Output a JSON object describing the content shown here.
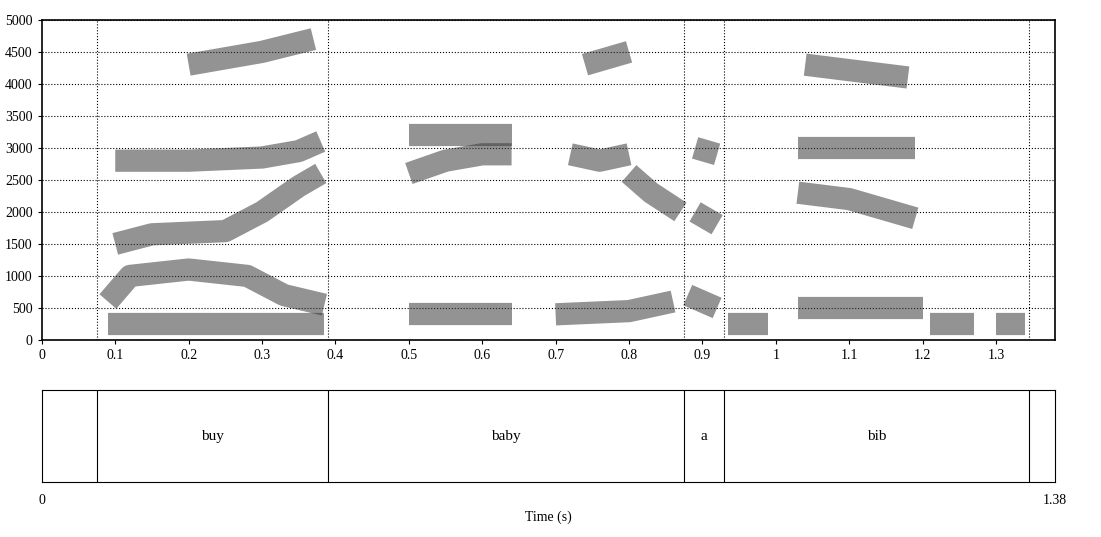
{
  "chart_data": {
    "type": "spectrogram",
    "xlim": [
      0,
      1.38
    ],
    "xticks": [
      0,
      0.1,
      0.2,
      0.3,
      0.4,
      0.5,
      0.6,
      0.7,
      0.8,
      0.9,
      1,
      1.1,
      1.2,
      1.3
    ],
    "ylim": [
      0,
      5000
    ],
    "yticks": [
      0,
      500,
      1000,
      1500,
      2000,
      2500,
      3000,
      3500,
      4000,
      4500,
      5000
    ],
    "grid": true,
    "color": "#3a3a3a",
    "series": [
      {
        "x": [
          0.09,
          0.385
        ],
        "values": [
          250,
          250
        ]
      },
      {
        "x": [
          0.09,
          0.12,
          0.2,
          0.28,
          0.33,
          0.385
        ],
        "values": [
          600,
          1000,
          1100,
          1000,
          700,
          550
        ]
      },
      {
        "x": [
          0.1,
          0.15,
          0.25,
          0.3,
          0.35,
          0.38
        ],
        "values": [
          1500,
          1650,
          1700,
          2000,
          2400,
          2600
        ]
      },
      {
        "x": [
          0.1,
          0.2,
          0.3,
          0.35,
          0.38
        ],
        "values": [
          2800,
          2800,
          2850,
          2950,
          3100
        ]
      },
      {
        "x": [
          0.2,
          0.3,
          0.37
        ],
        "values": [
          4300,
          4500,
          4700
        ]
      },
      {
        "x": [
          0.5,
          0.64
        ],
        "values": [
          400,
          400
        ]
      },
      {
        "x": [
          0.5,
          0.55,
          0.6,
          0.64
        ],
        "values": [
          2600,
          2800,
          2900,
          2900
        ]
      },
      {
        "x": [
          0.5,
          0.64
        ],
        "values": [
          3200,
          3200
        ]
      },
      {
        "x": [
          0.7,
          0.8,
          0.86
        ],
        "values": [
          400,
          450,
          600
        ]
      },
      {
        "x": [
          0.72,
          0.76,
          0.8
        ],
        "values": [
          2900,
          2800,
          2900
        ]
      },
      {
        "x": [
          0.8,
          0.83,
          0.87
        ],
        "values": [
          2600,
          2300,
          2000
        ]
      },
      {
        "x": [
          0.74,
          0.8
        ],
        "values": [
          4300,
          4500
        ]
      },
      {
        "x": [
          0.88,
          0.92
        ],
        "values": [
          700,
          500
        ]
      },
      {
        "x": [
          0.89,
          0.92
        ],
        "values": [
          2000,
          1800
        ]
      },
      {
        "x": [
          0.89,
          0.92
        ],
        "values": [
          3000,
          2900
        ]
      },
      {
        "x": [
          0.935,
          0.99
        ],
        "values": [
          250,
          250
        ]
      },
      {
        "x": [
          1.03,
          1.2
        ],
        "values": [
          500,
          500
        ]
      },
      {
        "x": [
          1.03,
          1.1,
          1.19
        ],
        "values": [
          2300,
          2200,
          1900
        ]
      },
      {
        "x": [
          1.03,
          1.19
        ],
        "values": [
          3000,
          3000
        ]
      },
      {
        "x": [
          1.04,
          1.18
        ],
        "values": [
          4300,
          4100
        ]
      },
      {
        "x": [
          1.21,
          1.27
        ],
        "values": [
          250,
          250
        ]
      },
      {
        "x": [
          1.3,
          1.34
        ],
        "values": [
          250,
          250
        ]
      }
    ],
    "intervals": [
      {
        "start": 0.075,
        "end": 0.39,
        "label": "buy"
      },
      {
        "start": 0.39,
        "end": 0.875,
        "label": "baby"
      },
      {
        "start": 0.875,
        "end": 0.93,
        "label": "a"
      },
      {
        "start": 0.93,
        "end": 1.345,
        "label": "bib"
      }
    ],
    "time_axis": {
      "ticks": [
        0,
        1.38
      ],
      "label": "Time (s)"
    }
  }
}
